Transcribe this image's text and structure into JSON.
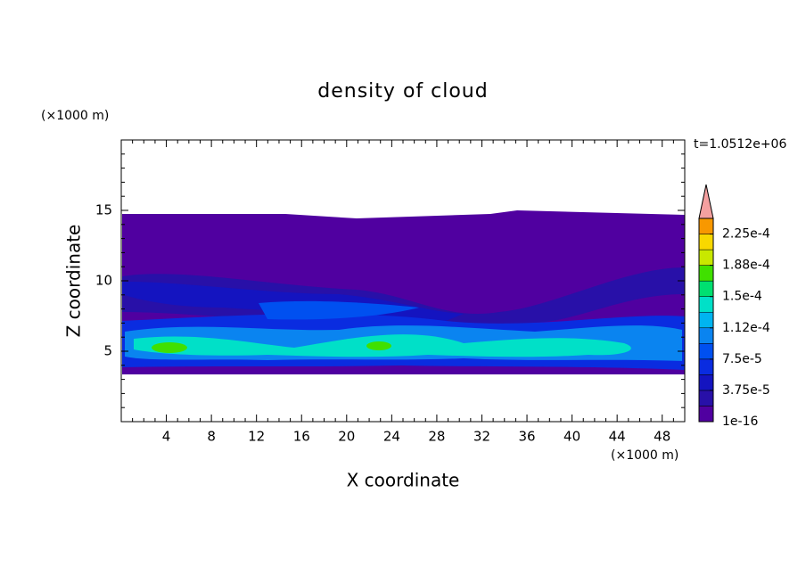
{
  "chart_data": {
    "type": "contour",
    "title": "density of cloud",
    "xlabel": "X coordinate",
    "ylabel": "Z coordinate",
    "x_unit": "(×1000 m)",
    "y_unit": "(×1000 m)",
    "time_label": "t=1.0512e+06",
    "xlim": [
      0,
      50
    ],
    "xticks": [
      4,
      8,
      12,
      16,
      20,
      24,
      28,
      32,
      36,
      40,
      44,
      48
    ],
    "ylim": [
      0,
      20
    ],
    "yticks": [
      5,
      10,
      15
    ],
    "colorbar": {
      "levels": [
        1e-16,
        1.875e-05,
        3.75e-05,
        5.625e-05,
        7.5e-05,
        9.375e-05,
        0.0001125,
        0.00013125,
        0.00015,
        0.00016875,
        0.0001875,
        0.00020625,
        0.000225,
        0.00024375
      ],
      "colors": [
        "#5000a0",
        "#2810a8",
        "#1414c0",
        "#0a2ce0",
        "#0050f0",
        "#0a84f0",
        "#00b4f0",
        "#00e0c8",
        "#00e070",
        "#40e000",
        "#c8e800",
        "#f8d800",
        "#f89800"
      ],
      "extend_color": "#f4a0a0",
      "ticks": [
        {
          "value": 1e-16,
          "label": "1e-16"
        },
        {
          "value": 3.75e-05,
          "label": "3.75e-5"
        },
        {
          "value": 7.5e-05,
          "label": "7.5e-5"
        },
        {
          "value": 0.0001125,
          "label": "1.12e-4"
        },
        {
          "value": 0.00015,
          "label": "1.5e-4"
        },
        {
          "value": 0.0001875,
          "label": "1.88e-4"
        },
        {
          "value": 0.000225,
          "label": "2.25e-4"
        }
      ]
    }
  }
}
